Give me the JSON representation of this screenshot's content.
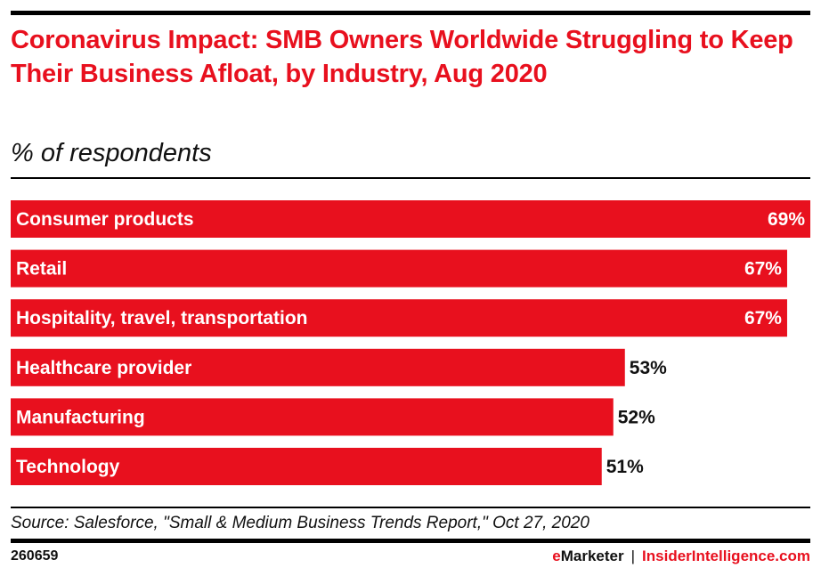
{
  "header": {
    "title": "Coronavirus Impact: SMB Owners Worldwide Struggling to Keep Their Business Afloat, by Industry, Aug 2020",
    "subtitle": "% of respondents"
  },
  "footer": {
    "source": "Source: Salesforce, \"Small & Medium Business Trends Report,\" Oct 27, 2020",
    "chart_id": "260659",
    "brand_e": "e",
    "brand_rest": "Marketer",
    "brand_sep": "|",
    "brand_site": "InsiderIntelligence.com"
  },
  "colors": {
    "bar": "#e8101e",
    "label_inside": "#ffffff",
    "label_outside": "#111111"
  },
  "chart_data": {
    "type": "bar",
    "orientation": "horizontal",
    "title": "Coronavirus Impact: SMB Owners Worldwide Struggling to Keep Their Business Afloat, by Industry, Aug 2020",
    "subtitle": "% of respondents",
    "xlabel": "",
    "ylabel": "",
    "categories": [
      "Consumer products",
      "Retail",
      "Hospitality, travel, transportation",
      "Healthcare provider",
      "Manufacturing",
      "Technology"
    ],
    "values": [
      69,
      67,
      67,
      53,
      52,
      51
    ],
    "value_labels": [
      "69%",
      "67%",
      "67%",
      "53%",
      "52%",
      "51%"
    ],
    "xlim": [
      0,
      69
    ],
    "grid": false,
    "legend": "none"
  }
}
